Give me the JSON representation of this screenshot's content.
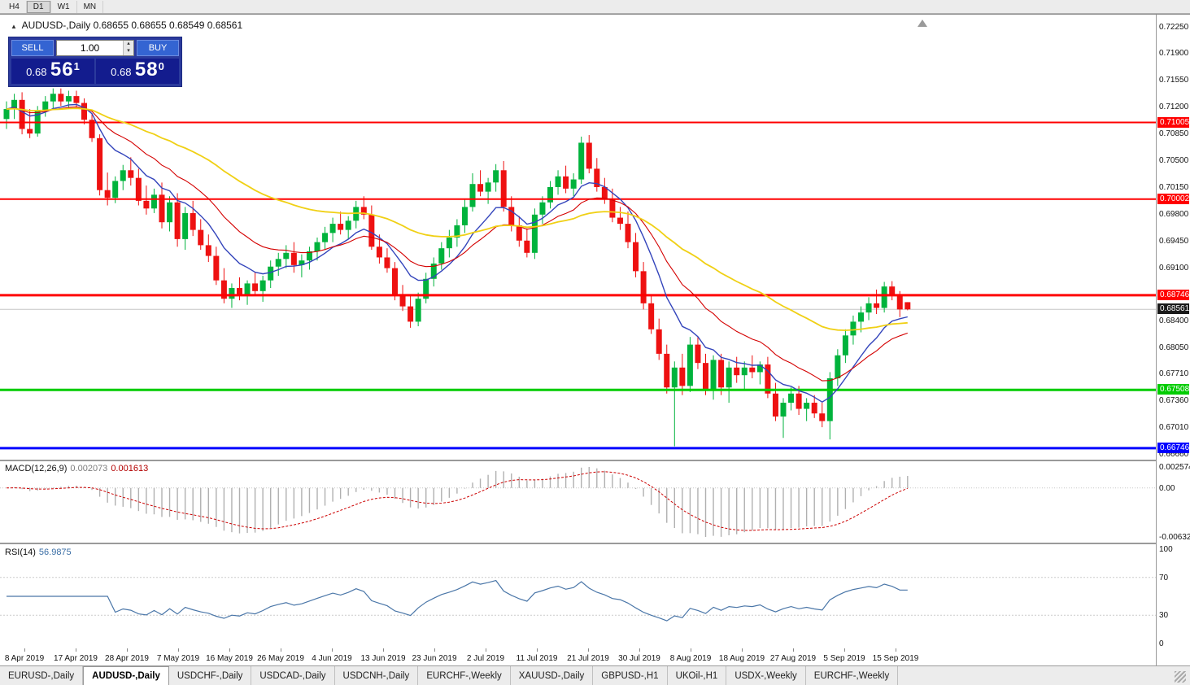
{
  "toolbar": {
    "timeframes": [
      {
        "label": "H4",
        "active": false
      },
      {
        "label": "D1",
        "active": true
      },
      {
        "label": "W1",
        "active": false
      },
      {
        "label": "MN",
        "active": false
      }
    ]
  },
  "chart": {
    "symbol_title": "AUDUSD-,Daily",
    "ohlc": "0.68655 0.68655 0.68549 0.68561"
  },
  "trade_panel": {
    "sell_label": "SELL",
    "buy_label": "BUY",
    "volume": "1.00",
    "sell_price": {
      "base": "0.68",
      "pips": "56",
      "pipette": "1"
    },
    "buy_price": {
      "base": "0.68",
      "pips": "58",
      "pipette": "0"
    }
  },
  "price_axis": {
    "ticks": [
      "0.72250",
      "0.71900",
      "0.71550",
      "0.71200",
      "0.70850",
      "0.70500",
      "0.70150",
      "0.69800",
      "0.69450",
      "0.69100",
      "0.68400",
      "0.68050",
      "0.67710",
      "0.67360",
      "0.67010",
      "0.66660"
    ]
  },
  "current_price": {
    "label": "0.68561",
    "value": 0.68561,
    "badge_color": "#1a1a1a"
  },
  "macd": {
    "name": "MACD(12,26,9)",
    "value_main": "0.002073",
    "value_signal": "0.001613",
    "axis_top": "0.002574",
    "axis_zero": "0.00",
    "axis_bottom": "-0.006326",
    "fast": 12,
    "slow": 26,
    "signal": 9
  },
  "rsi": {
    "name": "RSI(14)",
    "value": "56.9875",
    "period": 14,
    "axis": [
      {
        "label": "100",
        "value": 100
      },
      {
        "label": "70",
        "value": 70
      },
      {
        "label": "30",
        "value": 30
      },
      {
        "label": "0",
        "value": 0
      }
    ],
    "levels": [
      70,
      30
    ]
  },
  "date_axis": [
    "8 Apr 2019",
    "17 Apr 2019",
    "28 Apr 2019",
    "7 May 2019",
    "16 May 2019",
    "26 May 2019",
    "4 Jun 2019",
    "13 Jun 2019",
    "23 Jun 2019",
    "2 Jul 2019",
    "11 Jul 2019",
    "21 Jul 2019",
    "30 Jul 2019",
    "8 Aug 2019",
    "18 Aug 2019",
    "27 Aug 2019",
    "5 Sep 2019",
    "15 Sep 2019"
  ],
  "tabs": [
    {
      "label": "EURUSD-,Daily",
      "active": false
    },
    {
      "label": "AUDUSD-,Daily",
      "active": true
    },
    {
      "label": "USDCHF-,Daily",
      "active": false
    },
    {
      "label": "USDCAD-,Daily",
      "active": false
    },
    {
      "label": "USDCNH-,Daily",
      "active": false
    },
    {
      "label": "EURCHF-,Weekly",
      "active": false
    },
    {
      "label": "XAUUSD-,Daily",
      "active": false
    },
    {
      "label": "GBPUSD-,H1",
      "active": false
    },
    {
      "label": "UKOil-,H1",
      "active": false
    },
    {
      "label": "USDX-,Weekly",
      "active": false
    },
    {
      "label": "EURCHF-,Weekly",
      "active": false
    }
  ],
  "chart_data": {
    "type": "candlestick",
    "title": "AUDUSD-,Daily",
    "x_range": [
      "8 Apr 2019",
      "17 Sep 2019"
    ],
    "ylim": [
      0.6656,
      0.724
    ],
    "bull_color": "#00b33c",
    "bear_color": "#ee1111",
    "candles": [
      [
        0.7105,
        0.7128,
        0.7092,
        0.7118
      ],
      [
        0.7118,
        0.7138,
        0.7105,
        0.713
      ],
      [
        0.713,
        0.714,
        0.7085,
        0.7092
      ],
      [
        0.7092,
        0.7118,
        0.708,
        0.7086
      ],
      [
        0.7086,
        0.7122,
        0.7082,
        0.7116
      ],
      [
        0.7116,
        0.7135,
        0.7108,
        0.7128
      ],
      [
        0.7128,
        0.7145,
        0.7118,
        0.7138
      ],
      [
        0.7138,
        0.7145,
        0.7122,
        0.7128
      ],
      [
        0.7128,
        0.7142,
        0.7118,
        0.7135
      ],
      [
        0.7135,
        0.7142,
        0.712,
        0.7126
      ],
      [
        0.7126,
        0.7132,
        0.7098,
        0.7104
      ],
      [
        0.7104,
        0.7112,
        0.7075,
        0.708
      ],
      [
        0.708,
        0.7085,
        0.7005,
        0.7012
      ],
      [
        0.7012,
        0.7035,
        0.6992,
        0.7002
      ],
      [
        0.7002,
        0.703,
        0.6995,
        0.7024
      ],
      [
        0.7024,
        0.7045,
        0.7012,
        0.7038
      ],
      [
        0.7038,
        0.7055,
        0.7018,
        0.7028
      ],
      [
        0.7028,
        0.704,
        0.6992,
        0.6998
      ],
      [
        0.6998,
        0.7018,
        0.698,
        0.6988
      ],
      [
        0.6988,
        0.7014,
        0.6982,
        0.7006
      ],
      [
        0.7006,
        0.7022,
        0.6962,
        0.697
      ],
      [
        0.697,
        0.7004,
        0.6958,
        0.6996
      ],
      [
        0.6996,
        0.7008,
        0.6938,
        0.6948
      ],
      [
        0.6948,
        0.699,
        0.6934,
        0.6982
      ],
      [
        0.6982,
        0.6998,
        0.6952,
        0.696
      ],
      [
        0.696,
        0.6974,
        0.6934,
        0.694
      ],
      [
        0.694,
        0.6954,
        0.6918,
        0.6926
      ],
      [
        0.6926,
        0.6938,
        0.6888,
        0.6894
      ],
      [
        0.6894,
        0.691,
        0.6864,
        0.687
      ],
      [
        0.687,
        0.689,
        0.6858,
        0.6884
      ],
      [
        0.6884,
        0.6898,
        0.6868,
        0.6876
      ],
      [
        0.6876,
        0.6894,
        0.6862,
        0.689
      ],
      [
        0.689,
        0.6904,
        0.6874,
        0.688
      ],
      [
        0.688,
        0.69,
        0.6866,
        0.6894
      ],
      [
        0.6894,
        0.692,
        0.6884,
        0.6912
      ],
      [
        0.6912,
        0.693,
        0.69,
        0.6922
      ],
      [
        0.6922,
        0.694,
        0.691,
        0.693
      ],
      [
        0.693,
        0.6944,
        0.6904,
        0.6914
      ],
      [
        0.6914,
        0.6928,
        0.6898,
        0.692
      ],
      [
        0.692,
        0.6938,
        0.6908,
        0.6932
      ],
      [
        0.6932,
        0.695,
        0.692,
        0.6944
      ],
      [
        0.6944,
        0.6964,
        0.6934,
        0.6956
      ],
      [
        0.6956,
        0.6976,
        0.6944,
        0.6968
      ],
      [
        0.6968,
        0.6984,
        0.6954,
        0.696
      ],
      [
        0.696,
        0.6978,
        0.6948,
        0.6972
      ],
      [
        0.6972,
        0.6998,
        0.6962,
        0.699
      ],
      [
        0.699,
        0.7004,
        0.6974,
        0.698
      ],
      [
        0.698,
        0.6992,
        0.6934,
        0.6938
      ],
      [
        0.6938,
        0.6954,
        0.6916,
        0.6924
      ],
      [
        0.6924,
        0.6936,
        0.6904,
        0.691
      ],
      [
        0.691,
        0.6918,
        0.6868,
        0.6876
      ],
      [
        0.6876,
        0.6888,
        0.6854,
        0.686
      ],
      [
        0.686,
        0.6874,
        0.6832,
        0.684
      ],
      [
        0.684,
        0.6878,
        0.6834,
        0.687
      ],
      [
        0.687,
        0.6904,
        0.6864,
        0.6896
      ],
      [
        0.6896,
        0.6924,
        0.6886,
        0.6916
      ],
      [
        0.6916,
        0.6944,
        0.6908,
        0.6936
      ],
      [
        0.6936,
        0.696,
        0.6924,
        0.695
      ],
      [
        0.695,
        0.6974,
        0.6938,
        0.6966
      ],
      [
        0.6966,
        0.7,
        0.6956,
        0.699
      ],
      [
        0.699,
        0.7034,
        0.6984,
        0.702
      ],
      [
        0.702,
        0.7038,
        0.7004,
        0.701
      ],
      [
        0.701,
        0.7028,
        0.6994,
        0.7022
      ],
      [
        0.7022,
        0.7046,
        0.701,
        0.7038
      ],
      [
        0.7038,
        0.705,
        0.6984,
        0.699
      ],
      [
        0.699,
        0.7004,
        0.6958,
        0.6966
      ],
      [
        0.6966,
        0.6978,
        0.6938,
        0.6946
      ],
      [
        0.6946,
        0.6962,
        0.6924,
        0.693
      ],
      [
        0.693,
        0.6988,
        0.6922,
        0.698
      ],
      [
        0.698,
        0.7004,
        0.6968,
        0.6996
      ],
      [
        0.6996,
        0.7024,
        0.6988,
        0.7016
      ],
      [
        0.7016,
        0.7038,
        0.7006,
        0.703
      ],
      [
        0.703,
        0.7044,
        0.7008,
        0.7014
      ],
      [
        0.7014,
        0.7034,
        0.7004,
        0.7026
      ],
      [
        0.7026,
        0.7082,
        0.702,
        0.7074
      ],
      [
        0.7074,
        0.7084,
        0.7034,
        0.704
      ],
      [
        0.704,
        0.7054,
        0.701,
        0.7016
      ],
      [
        0.7016,
        0.7028,
        0.6994,
        0.7
      ],
      [
        0.7,
        0.7014,
        0.697,
        0.6976
      ],
      [
        0.6976,
        0.699,
        0.696,
        0.6968
      ],
      [
        0.6968,
        0.6984,
        0.6936,
        0.6944
      ],
      [
        0.6944,
        0.6956,
        0.6898,
        0.6906
      ],
      [
        0.6906,
        0.6918,
        0.6856,
        0.6864
      ],
      [
        0.6864,
        0.6874,
        0.6824,
        0.683
      ],
      [
        0.683,
        0.6844,
        0.679,
        0.6798
      ],
      [
        0.6798,
        0.681,
        0.6746,
        0.6754
      ],
      [
        0.6754,
        0.6788,
        0.6677,
        0.678
      ],
      [
        0.678,
        0.6798,
        0.6744,
        0.6756
      ],
      [
        0.6756,
        0.682,
        0.6748,
        0.681
      ],
      [
        0.681,
        0.682,
        0.6778,
        0.6786
      ],
      [
        0.6786,
        0.6798,
        0.6744,
        0.675
      ],
      [
        0.675,
        0.6796,
        0.6738,
        0.679
      ],
      [
        0.679,
        0.6798,
        0.6744,
        0.6754
      ],
      [
        0.6754,
        0.6788,
        0.6734,
        0.678
      ],
      [
        0.678,
        0.6794,
        0.676,
        0.677
      ],
      [
        0.677,
        0.6788,
        0.675,
        0.678
      ],
      [
        0.678,
        0.6796,
        0.6766,
        0.6774
      ],
      [
        0.6774,
        0.6788,
        0.6758,
        0.6784
      ],
      [
        0.6784,
        0.6794,
        0.674,
        0.6746
      ],
      [
        0.6746,
        0.676,
        0.671,
        0.6716
      ],
      [
        0.6716,
        0.674,
        0.6688,
        0.6734
      ],
      [
        0.6734,
        0.6754,
        0.6724,
        0.6746
      ],
      [
        0.6746,
        0.6756,
        0.6718,
        0.6726
      ],
      [
        0.6726,
        0.674,
        0.671,
        0.6734
      ],
      [
        0.6734,
        0.6744,
        0.6714,
        0.672
      ],
      [
        0.672,
        0.6734,
        0.6702,
        0.671
      ],
      [
        0.671,
        0.6774,
        0.6686,
        0.6766
      ],
      [
        0.6766,
        0.6804,
        0.6756,
        0.6796
      ],
      [
        0.6796,
        0.683,
        0.6786,
        0.6822
      ],
      [
        0.6822,
        0.6848,
        0.681,
        0.684
      ],
      [
        0.684,
        0.686,
        0.6826,
        0.6852
      ],
      [
        0.6852,
        0.6872,
        0.6842,
        0.6864
      ],
      [
        0.6864,
        0.6882,
        0.685,
        0.6858
      ],
      [
        0.6858,
        0.6892,
        0.6852,
        0.6886
      ],
      [
        0.6886,
        0.6893,
        0.6868,
        0.6875
      ],
      [
        0.6875,
        0.688,
        0.6846,
        0.6856
      ],
      [
        0.68655,
        0.68655,
        0.68549,
        0.68561
      ]
    ],
    "moving_averages": [
      {
        "period": 9,
        "color": "#3344bb",
        "width": 1.4
      },
      {
        "period": 18,
        "color": "#d40000",
        "width": 1.1
      },
      {
        "period": 45,
        "color": "#f0d015",
        "width": 1.8
      }
    ],
    "hlines": [
      {
        "label": "0.71005",
        "price": 0.71005,
        "color": "#ff0000",
        "width": 2
      },
      {
        "label": "0.70002",
        "price": 0.70002,
        "color": "#ff0000",
        "width": 2
      },
      {
        "label": "0.68746",
        "price": 0.68746,
        "color": "#ff0000",
        "width": 3
      },
      {
        "label": "0.67508",
        "price": 0.67508,
        "color": "#00cc00",
        "width": 3
      },
      {
        "label": "0.66746",
        "price": 0.66746,
        "color": "#0000ff",
        "width": 3
      }
    ],
    "indicators": [
      {
        "type": "MACD",
        "params": [
          12,
          26,
          9
        ],
        "display": "0.002073 0.001613"
      },
      {
        "type": "RSI",
        "params": [
          14
        ],
        "display": "56.9875"
      }
    ]
  }
}
